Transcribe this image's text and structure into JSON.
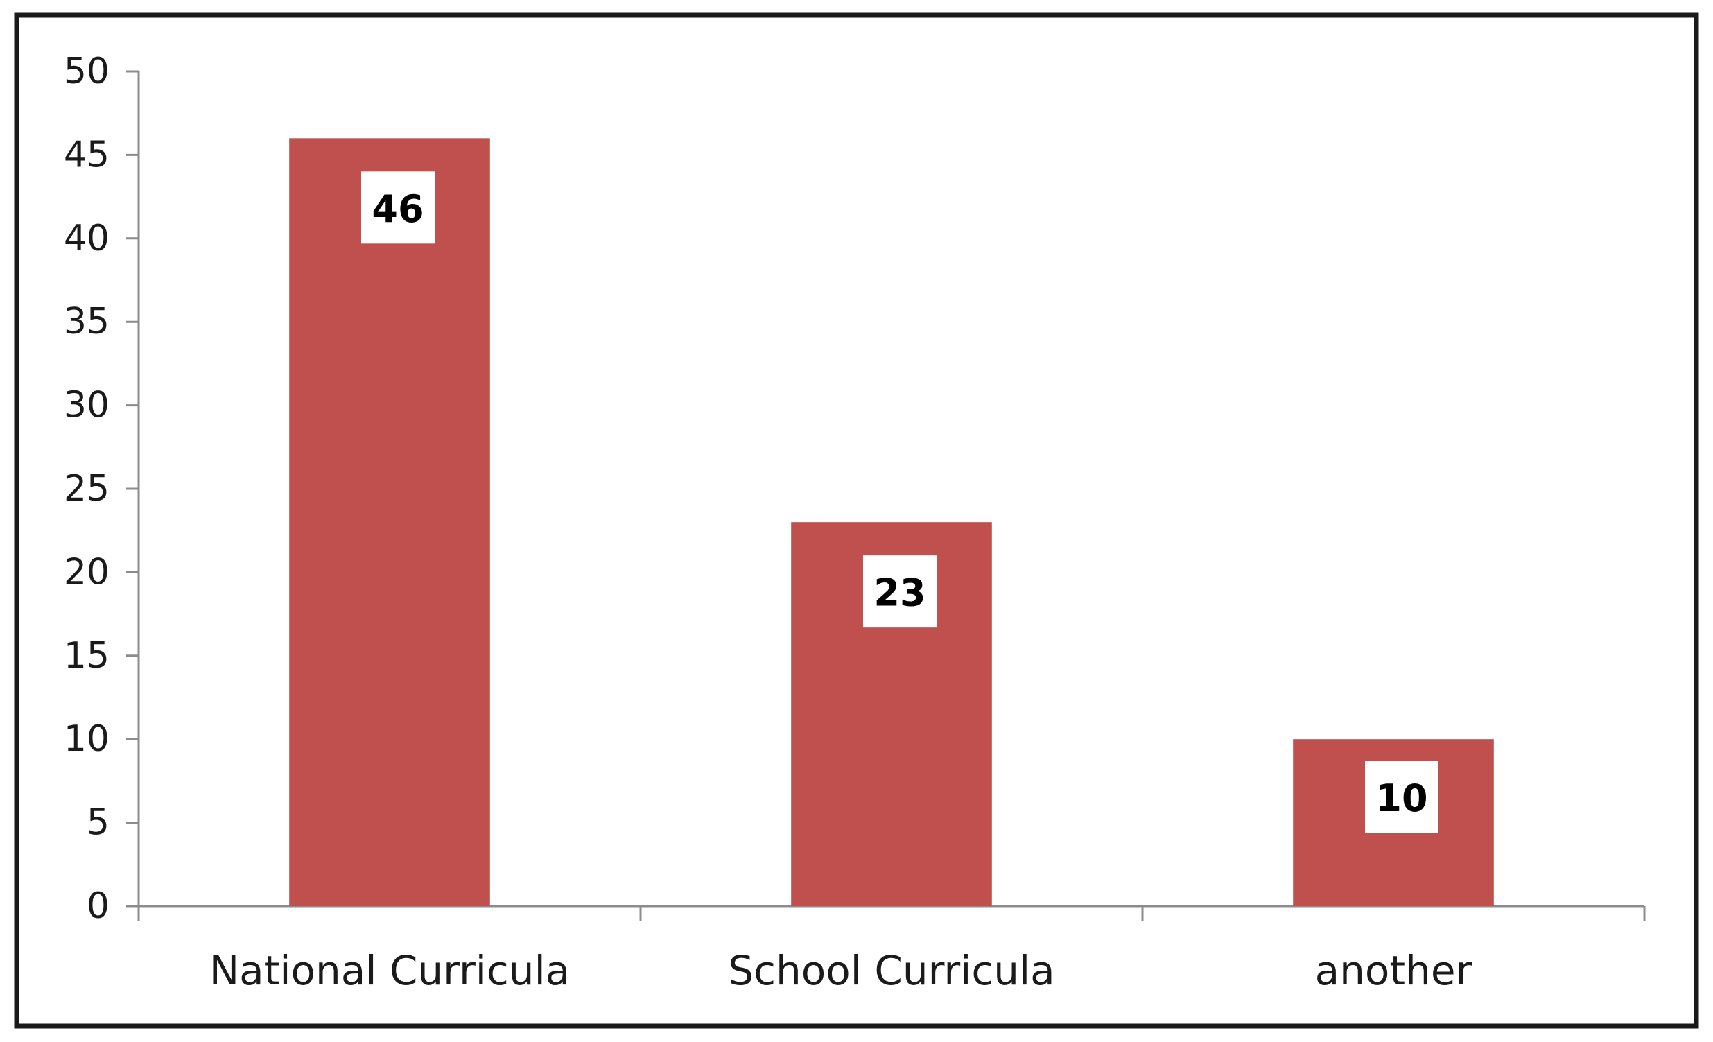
{
  "chart_data": {
    "type": "bar",
    "title": "",
    "xlabel": "",
    "ylabel": "",
    "categories": [
      "National Curricula",
      "School Curricula",
      "another"
    ],
    "values": [
      46,
      23,
      10
    ],
    "data_labels": [
      "46",
      "23",
      "10"
    ],
    "ylim": [
      0,
      50
    ],
    "yticks": [
      0,
      5,
      10,
      15,
      20,
      25,
      30,
      35,
      40,
      45,
      50
    ],
    "ytick_labels": [
      "0",
      "5",
      "10",
      "15",
      "20",
      "25",
      "30",
      "35",
      "40",
      "45",
      "50"
    ],
    "bar_color": "#c0504d",
    "grid": false,
    "legend": "none"
  }
}
